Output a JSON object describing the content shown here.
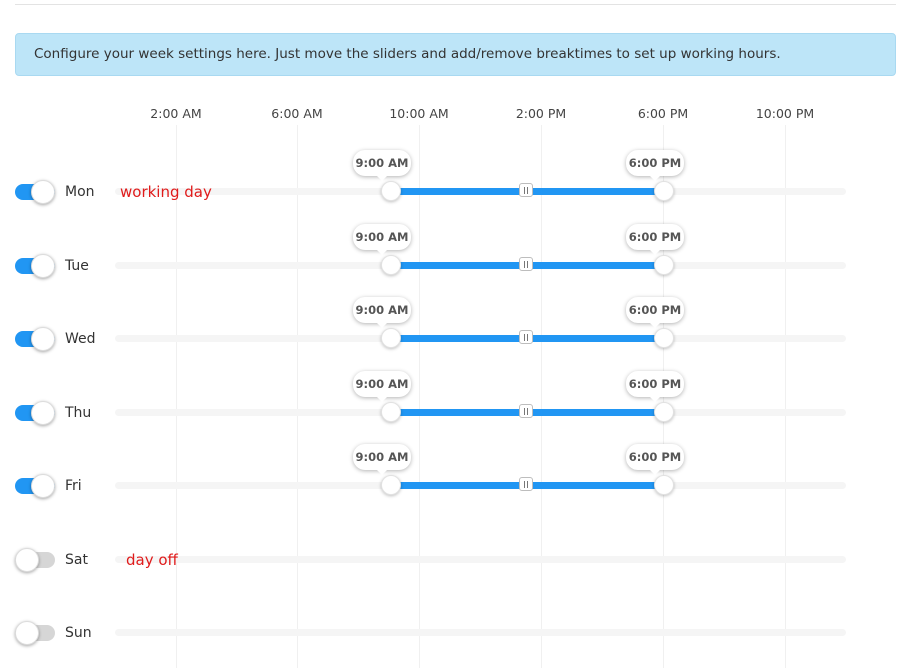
{
  "info_banner": "Configure your week settings here. Just move the sliders and add/remove breaktimes to set up working hours.",
  "time_axis": [
    "2:00 AM",
    "6:00 AM",
    "10:00 AM",
    "2:00 PM",
    "6:00 PM",
    "10:00 PM"
  ],
  "days": [
    {
      "name": "Mon",
      "enabled": true,
      "start": "9:00 AM",
      "end": "6:00 PM",
      "status": "working day"
    },
    {
      "name": "Tue",
      "enabled": true,
      "start": "9:00 AM",
      "end": "6:00 PM"
    },
    {
      "name": "Wed",
      "enabled": true,
      "start": "9:00 AM",
      "end": "6:00 PM"
    },
    {
      "name": "Thu",
      "enabled": true,
      "start": "9:00 AM",
      "end": "6:00 PM"
    },
    {
      "name": "Fri",
      "enabled": true,
      "start": "9:00 AM",
      "end": "6:00 PM"
    },
    {
      "name": "Sat",
      "enabled": false,
      "status": "day off"
    },
    {
      "name": "Sun",
      "enabled": false
    }
  ],
  "colors": {
    "accent": "#2196f3",
    "status": "#e01b1b",
    "banner": "#bde5f8"
  }
}
